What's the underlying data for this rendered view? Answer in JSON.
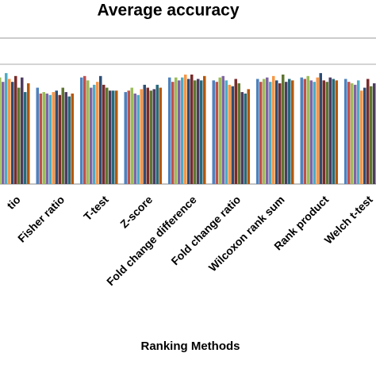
{
  "chart_data": {
    "type": "bar",
    "title": "Average accuracy",
    "x_label": "Ranking Methods",
    "categories": [
      "tio",
      "Fisher ratio",
      "T-test",
      "Z-score",
      "Fold change difference",
      "Fold change ratio",
      "Wilcoxon rank sum",
      "Rank product",
      "Welch t-test"
    ],
    "ylim": [
      0,
      1
    ],
    "series": [
      {
        "color": "#4f81bd",
        "values": [
          0.72,
          0.66,
          0.73,
          0.63,
          0.73,
          0.71,
          0.72,
          0.73,
          0.72
        ]
      },
      {
        "color": "#c0504d",
        "values": [
          0.74,
          0.62,
          0.74,
          0.64,
          0.7,
          0.7,
          0.7,
          0.72,
          0.7
        ]
      },
      {
        "color": "#9bbb59",
        "values": [
          0.73,
          0.63,
          0.71,
          0.66,
          0.73,
          0.73,
          0.72,
          0.74,
          0.69
        ]
      },
      {
        "color": "#8064a2",
        "values": [
          0.7,
          0.62,
          0.66,
          0.62,
          0.71,
          0.74,
          0.73,
          0.71,
          0.68
        ]
      },
      {
        "color": "#4bacc6",
        "values": [
          0.76,
          0.61,
          0.68,
          0.61,
          0.73,
          0.71,
          0.7,
          0.7,
          0.71
        ]
      },
      {
        "color": "#f79646",
        "values": [
          0.72,
          0.63,
          0.7,
          0.65,
          0.75,
          0.68,
          0.74,
          0.73,
          0.64
        ]
      },
      {
        "color": "#2c4d75",
        "values": [
          0.7,
          0.64,
          0.74,
          0.68,
          0.72,
          0.67,
          0.71,
          0.76,
          0.66
        ]
      },
      {
        "color": "#772c2a",
        "values": [
          0.74,
          0.61,
          0.68,
          0.66,
          0.75,
          0.72,
          0.69,
          0.71,
          0.72
        ]
      },
      {
        "color": "#5f7530",
        "values": [
          0.66,
          0.66,
          0.66,
          0.64,
          0.71,
          0.69,
          0.75,
          0.7,
          0.67
        ]
      },
      {
        "color": "#4d3b62",
        "values": [
          0.73,
          0.63,
          0.64,
          0.65,
          0.72,
          0.63,
          0.7,
          0.73,
          0.69
        ]
      },
      {
        "color": "#276a7c",
        "values": [
          0.63,
          0.6,
          0.64,
          0.68,
          0.71,
          0.62,
          0.72,
          0.72,
          0.7
        ]
      },
      {
        "color": "#b65708",
        "values": [
          0.69,
          0.62,
          0.64,
          0.66,
          0.74,
          0.65,
          0.71,
          0.71,
          0.64
        ]
      }
    ]
  }
}
